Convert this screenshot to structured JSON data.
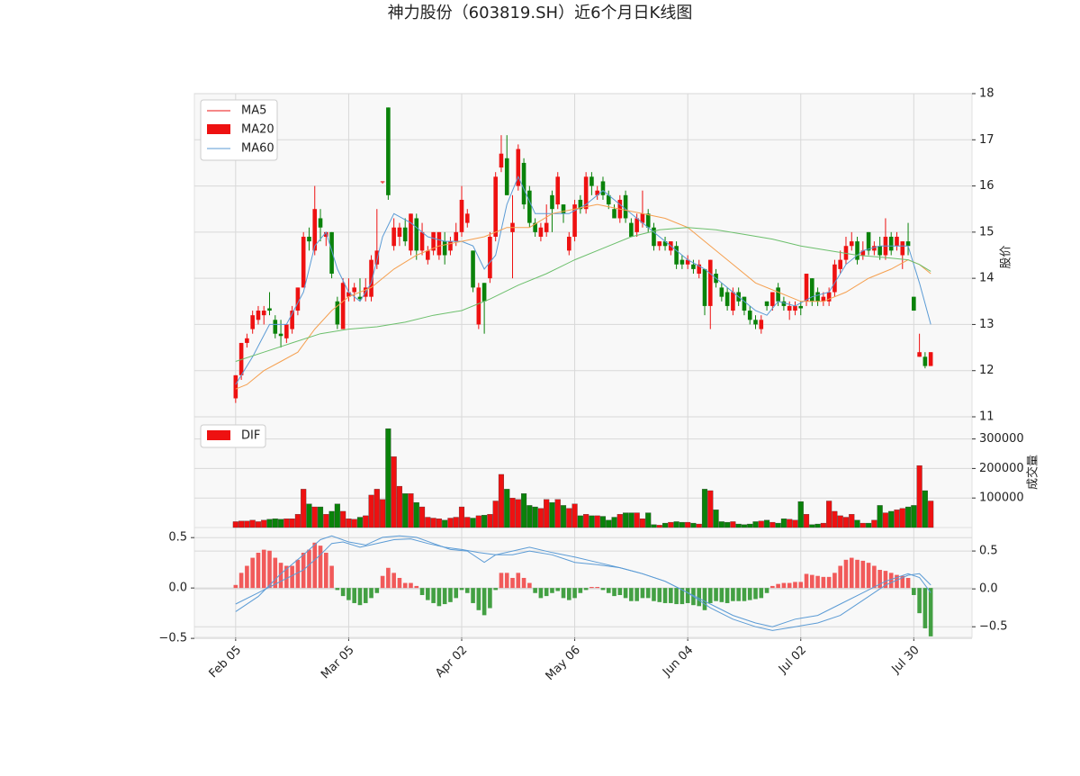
{
  "chart_data": [
    {
      "type": "candlestick",
      "title": "神力股份（603819.SH）近6个月日K线图",
      "ylabel": "股价",
      "up_color": "#ee1111",
      "down_color": "#0a820a",
      "xlim": [
        -7.3,
        130.3
      ],
      "xticks": [
        {
          "value": 0,
          "label": "Feb 05"
        },
        {
          "value": 20,
          "label": "Mar 05"
        },
        {
          "value": 40,
          "label": "Apr 02"
        },
        {
          "value": 60,
          "label": "May 06"
        },
        {
          "value": 80,
          "label": "Jun 04"
        },
        {
          "value": 100,
          "label": "Jul 02"
        },
        {
          "value": 120,
          "label": "Jul 30"
        }
      ],
      "ylim": [
        11,
        18
      ],
      "yticks": [
        11,
        12,
        13,
        14,
        15,
        16,
        17,
        18
      ],
      "grid": true,
      "open": [
        11.4,
        11.9,
        12.6,
        12.9,
        13.1,
        13.2,
        13.35,
        13.1,
        12.8,
        12.7,
        12.9,
        13.3,
        13.8,
        14.9,
        14.6,
        15.3,
        14.9,
        15.0,
        13.5,
        12.9,
        13.6,
        13.7,
        13.6,
        13.6,
        13.6,
        14.3,
        16.1,
        17.7,
        14.7,
        14.9,
        15.1,
        14.6,
        15.3,
        14.6,
        14.4,
        14.6,
        14.5,
        14.8,
        14.6,
        14.8,
        15.0,
        15.2,
        14.6,
        13.0,
        13.9,
        14.0,
        14.9,
        16.4,
        16.6,
        15.0,
        16.0,
        16.5,
        15.9,
        15.2,
        14.9,
        15.0,
        15.8,
        15.6,
        15.6,
        14.6,
        14.9,
        15.7,
        15.5,
        16.2,
        15.8,
        16.1,
        15.8,
        15.5,
        15.3,
        15.8,
        15.2,
        15.0,
        15.2,
        15.4,
        15.1,
        14.7,
        14.8,
        14.6,
        14.7,
        14.4,
        14.3,
        14.3,
        14.1,
        14.2,
        13.4,
        14.1,
        13.8,
        13.7,
        13.3,
        13.7,
        13.6,
        13.3,
        13.1,
        12.9,
        13.5,
        13.4,
        13.8,
        13.5,
        13.3,
        13.3,
        13.4,
        13.5,
        14.0,
        13.7,
        13.5,
        13.5,
        13.7,
        14.2,
        14.4,
        14.7,
        14.8,
        14.5,
        15.0,
        14.6,
        14.7,
        14.5,
        14.9,
        14.7,
        14.5,
        14.8,
        13.6,
        12.3,
        12.3,
        12.1
      ],
      "high": [
        11.9,
        12.6,
        12.8,
        13.3,
        13.4,
        13.4,
        13.7,
        13.2,
        13.1,
        13.0,
        13.4,
        13.8,
        15.0,
        15.1,
        16.0,
        15.5,
        15.0,
        15.0,
        13.6,
        14.0,
        14.0,
        13.9,
        14.0,
        14.0,
        14.5,
        15.5,
        16.1,
        17.7,
        15.3,
        15.2,
        15.3,
        15.4,
        15.4,
        15.2,
        14.7,
        15.0,
        15.0,
        15.0,
        14.9,
        15.2,
        16.0,
        15.5,
        14.6,
        13.9,
        13.9,
        15.0,
        16.3,
        17.1,
        17.1,
        15.8,
        16.9,
        16.6,
        16.0,
        15.3,
        15.2,
        15.6,
        15.9,
        16.3,
        15.6,
        15.0,
        15.7,
        15.8,
        16.3,
        16.3,
        16.0,
        16.2,
        15.9,
        15.6,
        15.8,
        15.9,
        15.3,
        15.4,
        15.9,
        15.5,
        15.2,
        14.8,
        14.9,
        14.8,
        14.8,
        14.5,
        14.5,
        14.4,
        14.4,
        14.2,
        14.4,
        14.2,
        13.9,
        13.8,
        13.8,
        13.8,
        13.6,
        13.4,
        13.2,
        13.2,
        13.5,
        13.7,
        13.9,
        13.6,
        13.5,
        13.5,
        13.5,
        14.1,
        14.0,
        13.8,
        13.7,
        13.8,
        14.4,
        14.6,
        14.9,
        15.0,
        14.9,
        14.8,
        15.0,
        14.8,
        14.9,
        15.3,
        15.0,
        15.0,
        14.8,
        15.2,
        13.6,
        12.8,
        12.4,
        12.4
      ],
      "low": [
        11.3,
        11.8,
        12.5,
        12.8,
        13.0,
        13.0,
        13.2,
        12.7,
        12.5,
        12.6,
        12.8,
        13.2,
        13.8,
        14.6,
        14.5,
        14.8,
        14.7,
        14.0,
        12.9,
        12.9,
        13.5,
        13.5,
        13.5,
        13.5,
        13.5,
        14.2,
        16.05,
        15.7,
        14.6,
        14.7,
        14.7,
        14.5,
        14.4,
        14.5,
        14.3,
        14.5,
        14.4,
        14.3,
        14.5,
        14.7,
        14.9,
        15.1,
        13.7,
        12.9,
        12.8,
        13.9,
        14.8,
        16.3,
        15.8,
        14.0,
        15.9,
        15.5,
        15.1,
        14.9,
        14.8,
        14.9,
        15.0,
        15.5,
        15.2,
        14.5,
        14.8,
        15.4,
        15.4,
        15.8,
        15.7,
        15.7,
        15.5,
        15.3,
        15.2,
        15.2,
        14.9,
        14.9,
        15.1,
        15.0,
        14.6,
        14.6,
        14.6,
        14.5,
        14.2,
        14.2,
        14.2,
        14.1,
        14.0,
        13.2,
        12.9,
        13.8,
        13.5,
        13.3,
        13.2,
        13.4,
        13.2,
        13.0,
        12.9,
        12.8,
        13.3,
        13.3,
        13.4,
        13.3,
        13.1,
        13.2,
        13.2,
        13.4,
        13.4,
        13.4,
        13.4,
        13.4,
        13.6,
        14.1,
        14.3,
        14.6,
        14.3,
        14.4,
        14.5,
        14.5,
        14.4,
        14.4,
        14.5,
        14.6,
        14.2,
        14.5,
        13.3,
        12.3,
        12.05,
        12.1
      ],
      "close": [
        11.9,
        12.6,
        12.7,
        13.2,
        13.3,
        13.3,
        13.3,
        12.8,
        12.75,
        13.0,
        13.3,
        13.8,
        14.9,
        14.8,
        15.5,
        15.1,
        15.0,
        14.1,
        13.0,
        13.9,
        13.7,
        13.8,
        13.55,
        13.8,
        14.4,
        14.6,
        16.1,
        15.8,
        15.1,
        15.1,
        14.8,
        15.4,
        14.6,
        15.0,
        14.6,
        15.0,
        15.0,
        14.5,
        14.8,
        15.0,
        15.7,
        15.4,
        13.8,
        13.8,
        13.5,
        14.9,
        16.2,
        16.7,
        15.8,
        15.2,
        16.8,
        15.6,
        15.2,
        15.0,
        15.1,
        15.2,
        15.5,
        16.2,
        15.4,
        14.9,
        15.6,
        15.5,
        16.2,
        16.0,
        15.9,
        15.8,
        15.6,
        15.3,
        15.7,
        15.3,
        14.9,
        15.3,
        15.4,
        15.1,
        14.7,
        14.8,
        14.7,
        14.8,
        14.3,
        14.3,
        14.4,
        14.2,
        14.3,
        13.4,
        14.4,
        13.9,
        13.6,
        13.4,
        13.7,
        13.5,
        13.3,
        13.1,
        13.0,
        13.1,
        13.4,
        13.7,
        13.5,
        13.4,
        13.4,
        13.4,
        13.35,
        14.1,
        13.5,
        13.5,
        13.6,
        13.7,
        14.3,
        14.4,
        14.7,
        14.8,
        14.4,
        14.6,
        14.6,
        14.7,
        14.5,
        14.9,
        14.6,
        14.9,
        14.8,
        14.7,
        13.3,
        12.4,
        12.1,
        12.4
      ],
      "legend": [
        {
          "label": "MA5",
          "color": "#ee1111",
          "style": "line"
        },
        {
          "label": "MA20",
          "color": "#ee1111",
          "style": "patch"
        },
        {
          "label": "MA60",
          "color": "#5b9bd5",
          "style": "line"
        }
      ],
      "lines": [
        {
          "color": "#5b9bd5",
          "x": [
            0,
            3,
            6,
            9,
            12,
            14,
            16,
            18,
            20,
            22,
            24,
            26,
            28,
            31,
            34,
            37,
            40,
            42,
            44,
            46,
            48,
            50,
            53,
            56,
            59,
            62,
            65,
            68,
            71,
            74,
            77,
            80,
            83,
            86,
            89,
            92,
            94,
            96,
            99,
            102,
            105,
            108,
            111,
            114,
            117,
            119,
            121,
            123
          ],
          "values": [
            11.7,
            12.3,
            13.0,
            13.0,
            13.7,
            14.7,
            15.0,
            14.2,
            13.7,
            13.5,
            13.9,
            14.9,
            15.4,
            15.2,
            14.9,
            14.8,
            14.8,
            14.7,
            14.2,
            14.5,
            15.6,
            16.2,
            15.4,
            15.4,
            15.4,
            15.6,
            15.9,
            15.6,
            15.3,
            15.0,
            14.7,
            14.4,
            14.2,
            13.9,
            13.6,
            13.3,
            13.2,
            13.5,
            13.4,
            13.6,
            13.7,
            14.3,
            14.6,
            14.7,
            14.7,
            14.7,
            13.9,
            13.0
          ]
        },
        {
          "color": "#f5a050",
          "x": [
            0,
            2,
            5,
            8,
            11,
            14,
            17,
            20,
            24,
            28,
            32,
            36,
            40,
            44,
            48,
            52,
            56,
            60,
            64,
            68,
            72,
            76,
            80,
            84,
            88,
            92,
            96,
            100,
            104,
            108,
            112,
            116,
            119,
            121,
            123
          ],
          "values": [
            11.6,
            11.7,
            12.0,
            12.2,
            12.4,
            12.9,
            13.3,
            13.6,
            13.8,
            14.2,
            14.5,
            14.7,
            14.8,
            14.9,
            15.1,
            15.1,
            15.4,
            15.5,
            15.6,
            15.5,
            15.4,
            15.3,
            15.1,
            14.7,
            14.3,
            13.9,
            13.7,
            13.5,
            13.5,
            13.7,
            14.0,
            14.2,
            14.4,
            14.3,
            14.1
          ]
        },
        {
          "color": "#6cbf6c",
          "x": [
            0,
            5,
            10,
            15,
            20,
            25,
            30,
            35,
            40,
            45,
            50,
            55,
            60,
            65,
            70,
            75,
            80,
            85,
            90,
            95,
            100,
            105,
            110,
            115,
            119,
            121,
            123
          ],
          "values": [
            12.2,
            12.4,
            12.6,
            12.8,
            12.9,
            12.95,
            13.05,
            13.2,
            13.3,
            13.55,
            13.85,
            14.1,
            14.4,
            14.65,
            14.9,
            15.05,
            15.1,
            15.05,
            14.95,
            14.85,
            14.7,
            14.6,
            14.5,
            14.45,
            14.4,
            14.3,
            14.15
          ]
        }
      ]
    },
    {
      "type": "volume",
      "ylabel": "成交量",
      "ylim": [
        0,
        375000
      ],
      "yticks": [
        100000,
        200000,
        300000
      ],
      "grid": true,
      "legend": [
        {
          "label": "DIF",
          "color": "#ee1111",
          "style": "patch"
        }
      ],
      "values": [
        20000,
        22000,
        22000,
        25000,
        20000,
        25000,
        28000,
        30000,
        28000,
        30000,
        30000,
        45000,
        130000,
        80000,
        70000,
        70000,
        45000,
        55000,
        80000,
        55000,
        30000,
        28000,
        35000,
        40000,
        110000,
        130000,
        95000,
        335000,
        240000,
        140000,
        115000,
        115000,
        85000,
        70000,
        35000,
        32000,
        30000,
        25000,
        32000,
        35000,
        70000,
        35000,
        32000,
        40000,
        42000,
        45000,
        90000,
        180000,
        130000,
        100000,
        95000,
        115000,
        75000,
        70000,
        65000,
        95000,
        85000,
        95000,
        75000,
        65000,
        80000,
        40000,
        45000,
        40000,
        40000,
        38000,
        25000,
        35000,
        45000,
        50000,
        50000,
        50000,
        30000,
        50000,
        10000,
        8000,
        15000,
        18000,
        20000,
        18000,
        18000,
        15000,
        12000,
        130000,
        125000,
        60000,
        20000,
        18000,
        20000,
        12000,
        10000,
        12000,
        20000,
        22000,
        25000,
        18000,
        15000,
        30000,
        28000,
        25000,
        88000,
        45000,
        10000,
        12000,
        15000,
        90000,
        55000,
        40000,
        35000,
        45000,
        25000,
        15000,
        15000,
        25000,
        75000,
        50000,
        55000,
        60000,
        65000,
        70000,
        75000,
        210000,
        125000,
        90000
      ]
    },
    {
      "type": "macd",
      "up_color": "#f04848",
      "down_color": "#2f962f",
      "ylim": [
        -0.49,
        0.6
      ],
      "yticks": [
        0.5,
        {
          "value": 0,
          "label": "0.0"
        },
        {
          "value": -0.5,
          "label": "−0.5"
        }
      ],
      "y2lim": [
        -0.64,
        0.81
      ],
      "y2ticks": [
        0.5,
        {
          "value": 0,
          "label": "0.0"
        },
        {
          "value": -0.5,
          "label": "−0.5"
        }
      ],
      "grid": true,
      "values": [
        0.03,
        0.15,
        0.22,
        0.3,
        0.35,
        0.38,
        0.37,
        0.3,
        0.25,
        0.22,
        0.22,
        0.28,
        0.35,
        0.38,
        0.45,
        0.42,
        0.35,
        0.22,
        -0.02,
        -0.08,
        -0.12,
        -0.15,
        -0.17,
        -0.15,
        -0.1,
        -0.05,
        0.12,
        0.2,
        0.15,
        0.1,
        0.05,
        0.05,
        0.02,
        -0.07,
        -0.12,
        -0.15,
        -0.18,
        -0.16,
        -0.14,
        -0.1,
        -0.02,
        -0.05,
        -0.15,
        -0.22,
        -0.27,
        -0.2,
        -0.02,
        0.15,
        0.15,
        0.1,
        0.15,
        0.1,
        0.05,
        -0.05,
        -0.1,
        -0.08,
        -0.05,
        -0.03,
        -0.1,
        -0.12,
        -0.1,
        -0.05,
        -0.02,
        0.01,
        0.01,
        -0.02,
        -0.05,
        -0.08,
        -0.07,
        -0.1,
        -0.13,
        -0.13,
        -0.1,
        -0.1,
        -0.13,
        -0.14,
        -0.15,
        -0.15,
        -0.16,
        -0.16,
        -0.15,
        -0.17,
        -0.18,
        -0.22,
        -0.15,
        -0.13,
        -0.14,
        -0.15,
        -0.13,
        -0.13,
        -0.13,
        -0.12,
        -0.11,
        -0.1,
        -0.05,
        0.02,
        0.04,
        0.05,
        0.05,
        0.06,
        0.06,
        0.14,
        0.13,
        0.12,
        0.11,
        0.11,
        0.15,
        0.22,
        0.28,
        0.3,
        0.28,
        0.27,
        0.25,
        0.22,
        0.18,
        0.17,
        0.15,
        0.13,
        0.12,
        0.1,
        -0.07,
        -0.25,
        -0.4,
        -0.48
      ],
      "lines": [
        {
          "axis": "y2",
          "color": "#5b9bd5",
          "x": [
            0,
            4,
            8,
            12,
            15,
            17,
            20,
            23,
            26,
            29,
            32,
            35,
            38,
            41,
            44,
            46,
            49,
            52,
            56,
            60,
            64,
            68,
            72,
            76,
            80,
            84,
            88,
            92,
            95,
            99,
            103,
            107,
            111,
            115,
            119,
            121,
            123
          ],
          "values": [
            -0.3,
            -0.1,
            0.2,
            0.45,
            0.65,
            0.7,
            0.62,
            0.58,
            0.68,
            0.7,
            0.68,
            0.6,
            0.52,
            0.5,
            0.35,
            0.45,
            0.5,
            0.55,
            0.48,
            0.42,
            0.35,
            0.28,
            0.2,
            0.1,
            -0.05,
            -0.2,
            -0.35,
            -0.45,
            -0.5,
            -0.4,
            -0.35,
            -0.2,
            -0.05,
            0.1,
            0.2,
            0.15,
            -0.05
          ]
        },
        {
          "axis": "y2",
          "color": "#5b9bd5",
          "x": [
            0,
            4,
            8,
            12,
            15,
            17,
            19,
            22,
            25,
            28,
            31,
            34,
            37,
            40,
            43,
            46,
            49,
            52,
            56,
            60,
            64,
            68,
            72,
            76,
            80,
            84,
            88,
            92,
            95,
            99,
            103,
            107,
            111,
            115,
            119,
            121,
            123
          ],
          "values": [
            -0.2,
            -0.05,
            0.1,
            0.25,
            0.45,
            0.6,
            0.62,
            0.55,
            0.6,
            0.65,
            0.66,
            0.6,
            0.55,
            0.52,
            0.48,
            0.45,
            0.45,
            0.5,
            0.45,
            0.35,
            0.32,
            0.28,
            0.2,
            0.1,
            -0.05,
            -0.25,
            -0.4,
            -0.5,
            -0.55,
            -0.5,
            -0.45,
            -0.35,
            -0.15,
            0.05,
            0.18,
            0.2,
            0.05
          ]
        }
      ]
    }
  ]
}
